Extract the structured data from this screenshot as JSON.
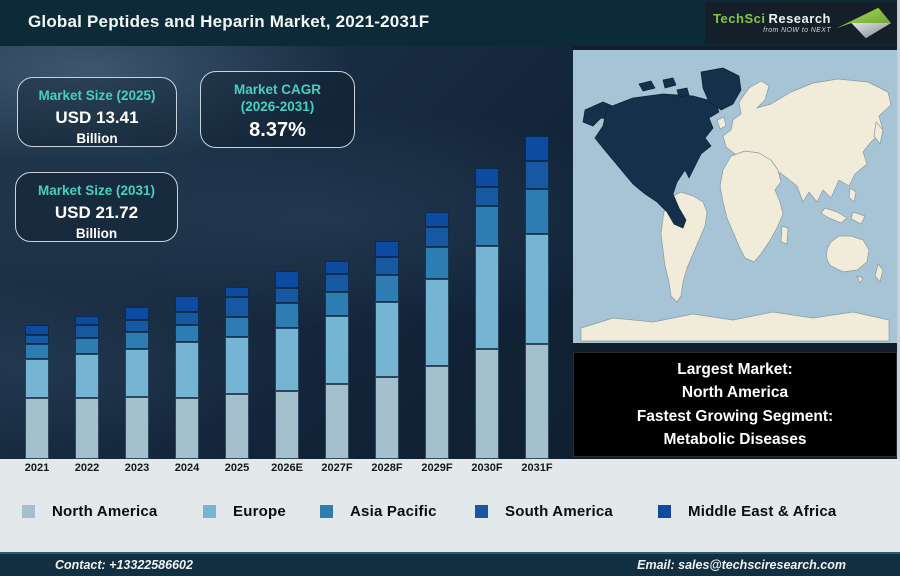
{
  "header": {
    "title": "Global Peptides and Heparin Market, 2021-2031F",
    "logo": {
      "part1": "TechSci",
      "part2": "Research",
      "tagline": "from NOW to NEXT"
    }
  },
  "callouts": {
    "size_2025": {
      "label": "Market Size (2025)",
      "value": "USD 13.41",
      "unit": "Billion"
    },
    "cagr": {
      "label_line1": "Market CAGR",
      "label_line2": "(2026-2031)",
      "value": "8.37%"
    },
    "size_2031": {
      "label": "Market Size (2031)",
      "value": "USD 21.72",
      "unit": "Billion"
    }
  },
  "chart_data": {
    "type": "bar",
    "stacked": true,
    "title": "Global Peptides and Heparin Market, 2021-2031F",
    "categories": [
      "2021",
      "2022",
      "2023",
      "2024",
      "2025",
      "2026E",
      "2027F",
      "2028F",
      "2029F",
      "2030F",
      "2031F"
    ],
    "series": [
      {
        "name": "North America",
        "color": "#a5c0cd",
        "values": [
          61,
          61,
          62,
          61,
          65,
          68,
          75,
          82,
          93,
          110,
          115
        ]
      },
      {
        "name": "Europe",
        "color": "#76b4d3",
        "values": [
          39,
          44,
          48,
          56,
          57,
          63,
          68,
          75,
          87,
          103,
          110
        ]
      },
      {
        "name": "Asia Pacific",
        "color": "#2d7cb2",
        "values": [
          15,
          16,
          17,
          17,
          20,
          25,
          24,
          27,
          32,
          40,
          45
        ]
      },
      {
        "name": "South America",
        "color": "#1659a2",
        "values": [
          9,
          13,
          12,
          13,
          20,
          15,
          18,
          18,
          20,
          19,
          28
        ]
      },
      {
        "name": "Middle East & Africa",
        "color": "#0c4ba0",
        "values": [
          10,
          9,
          13,
          16,
          10,
          17,
          13,
          16,
          15,
          19,
          25
        ]
      }
    ],
    "value_unit": "relative stacked-segment heights in px (chart shows no value axis)",
    "anchors": {
      "total_2025_usd_billion": 13.41,
      "total_2031_usd_billion": 21.72,
      "cagr_2026_2031_percent": 8.37
    },
    "axes": {
      "y_axis_visible": false,
      "grid": false
    },
    "legend_position": "bottom"
  },
  "map": {
    "highlighted_region": "North America",
    "ocean_color": "#a6c4d6",
    "land_color": "#f0ecd9",
    "highlight_color": "#14304a"
  },
  "highlight_box": {
    "lines": [
      "Largest Market:",
      "North America",
      "Fastest Growing Segment:",
      "Metabolic Diseases"
    ]
  },
  "footer": {
    "contact": "Contact: +13322586602",
    "email": "Email: sales@techsciresearch.com"
  },
  "theme": {
    "titlebar": "#0c2a38",
    "accent_teal": "#45d0bf",
    "footer_bg": "#123042",
    "logo_green": "#84c441"
  }
}
